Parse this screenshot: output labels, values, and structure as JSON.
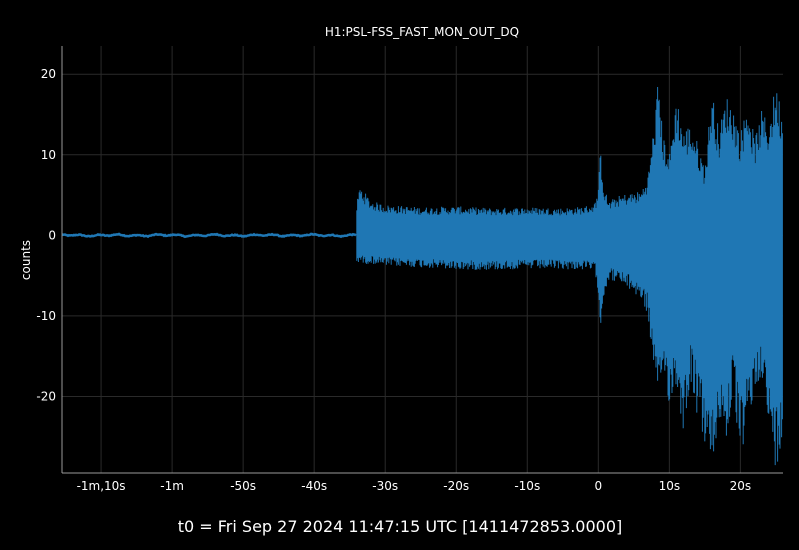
{
  "chart_data": {
    "type": "line",
    "title": "H1:PSL-FSS_FAST_MON_OUT_DQ",
    "xlabel": "t0 = Fri Sep 27 2024 11:47:15 UTC [1411472853.0000]",
    "ylabel": "counts",
    "xlim": [
      -75.5,
      26
    ],
    "ylim": [
      -29.5,
      23.5
    ],
    "x_ticks": [
      {
        "value": -70,
        "label": "-1m,10s"
      },
      {
        "value": -60,
        "label": "-1m"
      },
      {
        "value": -50,
        "label": "-50s"
      },
      {
        "value": -40,
        "label": "-40s"
      },
      {
        "value": -30,
        "label": "-30s"
      },
      {
        "value": -20,
        "label": "-20s"
      },
      {
        "value": -10,
        "label": "-10s"
      },
      {
        "value": 0,
        "label": "0"
      },
      {
        "value": 10,
        "label": "10s"
      },
      {
        "value": 20,
        "label": "20s"
      }
    ],
    "y_ticks": [
      {
        "value": 20,
        "label": "20"
      },
      {
        "value": 10,
        "label": "10"
      },
      {
        "value": 0,
        "label": "0"
      },
      {
        "value": -10,
        "label": "-10"
      },
      {
        "value": -20,
        "label": "-20"
      }
    ],
    "grid": true,
    "colors": {
      "background": "#000000",
      "grid": "#2a2a2a",
      "axis": "#9a9a9a",
      "series": "#1f77b4"
    },
    "series": [
      {
        "name": "",
        "color": "#1f77b4",
        "envelope": {
          "x": [
            -75.5,
            -65,
            -60,
            -50,
            -42,
            -36,
            -34.2,
            -34,
            -33.6,
            -33,
            -32,
            -30,
            -25,
            -20,
            -15,
            -10,
            -5,
            -2,
            -0.5,
            0,
            0.3,
            0.8,
            1.5,
            2.5,
            4,
            6,
            7,
            8,
            8.5,
            9,
            10,
            11,
            12,
            13,
            14,
            15,
            16,
            17,
            18,
            19,
            20,
            21,
            22,
            23,
            24,
            25,
            26
          ],
          "max": [
            0.4,
            0.4,
            0.5,
            0.4,
            0.3,
            0.5,
            0.3,
            4,
            6.2,
            5.5,
            4.3,
            3.8,
            3.5,
            3.6,
            3.4,
            3.5,
            3.4,
            3.6,
            4,
            5.8,
            11,
            6,
            4.2,
            4.8,
            5.2,
            5.5,
            7.5,
            15,
            20.5,
            13,
            10,
            17.5,
            13,
            14,
            11.5,
            8.5,
            18,
            13,
            17.5,
            16,
            12.5,
            17,
            12,
            15.5,
            14,
            19,
            15
          ],
          "min": [
            -0.5,
            -0.5,
            -0.5,
            -0.5,
            -0.5,
            -0.4,
            -0.2,
            -3.5,
            -3.2,
            -3.6,
            -3.5,
            -3.8,
            -4,
            -4.3,
            -4.3,
            -4.2,
            -4.2,
            -4.3,
            -4.5,
            -7,
            -12,
            -7.5,
            -5.5,
            -5.8,
            -6.5,
            -8,
            -10,
            -19,
            -22.5,
            -17,
            -21,
            -19,
            -24.5,
            -18,
            -23,
            -26,
            -30,
            -23,
            -26,
            -20,
            -28,
            -24,
            -20,
            -17,
            -25,
            -29,
            -27
          ]
        }
      }
    ]
  }
}
